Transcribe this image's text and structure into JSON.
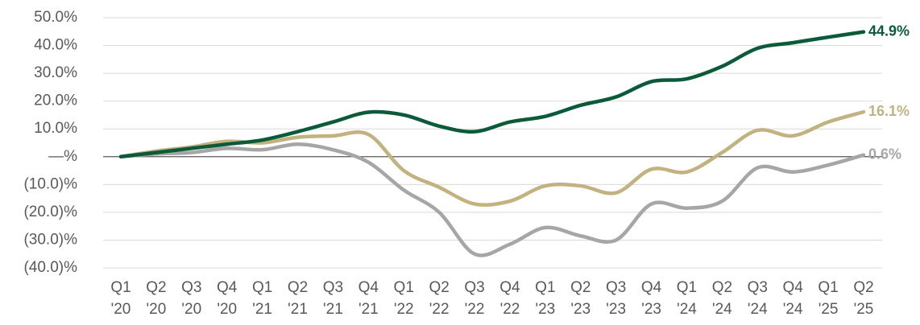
{
  "chart_data": {
    "type": "line",
    "categories": [
      [
        "Q1",
        "'20"
      ],
      [
        "Q2",
        "'20"
      ],
      [
        "Q3",
        "'20"
      ],
      [
        "Q4",
        "'20"
      ],
      [
        "Q1",
        "'21"
      ],
      [
        "Q2",
        "'21"
      ],
      [
        "Q3",
        "'21"
      ],
      [
        "Q4",
        "'21"
      ],
      [
        "Q1",
        "'22"
      ],
      [
        "Q2",
        "'22"
      ],
      [
        "Q3",
        "'22"
      ],
      [
        "Q4",
        "'22"
      ],
      [
        "Q1",
        "'23"
      ],
      [
        "Q2",
        "'23"
      ],
      [
        "Q3",
        "'23"
      ],
      [
        "Q4",
        "'23"
      ],
      [
        "Q1",
        "'24"
      ],
      [
        "Q2",
        "'24"
      ],
      [
        "Q3",
        "'24"
      ],
      [
        "Q4",
        "'24"
      ],
      [
        "Q1",
        "'25"
      ],
      [
        "Q2",
        "'25"
      ]
    ],
    "series": [
      {
        "color": "#0b5a3a",
        "values": [
          0,
          1.5,
          3,
          4.5,
          6,
          9,
          12.5,
          16,
          15,
          11,
          9,
          12.5,
          14.5,
          18.5,
          21.5,
          27,
          28,
          32.5,
          39,
          41,
          43,
          44.9
        ],
        "value_labels": [
          null,
          null,
          null,
          null,
          null,
          null,
          null,
          null,
          null,
          null,
          null,
          null,
          null,
          null,
          null,
          null,
          null,
          null,
          null,
          null,
          null,
          "44.9%"
        ]
      },
      {
        "color": "#c2b280",
        "values": [
          0,
          2,
          3.5,
          5.5,
          5,
          7,
          7.5,
          8,
          -5,
          -11,
          -17,
          -16,
          -10.5,
          -10.5,
          -13,
          -4.5,
          -5.5,
          1.5,
          9.5,
          7.5,
          12.5,
          16.1
        ],
        "value_labels": [
          null,
          null,
          null,
          null,
          null,
          null,
          null,
          null,
          null,
          null,
          null,
          null,
          null,
          null,
          null,
          null,
          null,
          null,
          null,
          null,
          null,
          "16.1%"
        ]
      },
      {
        "color": "#a6a6a6",
        "values": [
          0,
          1,
          1.5,
          3,
          2.5,
          4.5,
          2.5,
          -2,
          -12,
          -20,
          -35,
          -31.5,
          -25.5,
          -28.5,
          -30,
          -17,
          -18.5,
          -16,
          -4,
          -5.5,
          -3,
          0.6
        ],
        "value_labels": [
          null,
          null,
          null,
          null,
          null,
          null,
          null,
          null,
          null,
          null,
          null,
          null,
          null,
          null,
          null,
          null,
          null,
          null,
          null,
          null,
          null,
          "0.6%"
        ]
      }
    ],
    "ylim": [
      -40,
      50
    ],
    "yticks": [
      {
        "value": 50,
        "label": "50.0%"
      },
      {
        "value": 40,
        "label": "40.0%"
      },
      {
        "value": 30,
        "label": "30.0%"
      },
      {
        "value": 20,
        "label": "20.0%"
      },
      {
        "value": 10,
        "label": "10.0%"
      },
      {
        "value": 0,
        "label": "—%"
      },
      {
        "value": -10,
        "label": "(10.0)%"
      },
      {
        "value": -20,
        "label": "(20.0)%"
      },
      {
        "value": -30,
        "label": "(30.0)%"
      },
      {
        "value": -40,
        "label": "(40.0)%"
      }
    ],
    "grid": true
  }
}
